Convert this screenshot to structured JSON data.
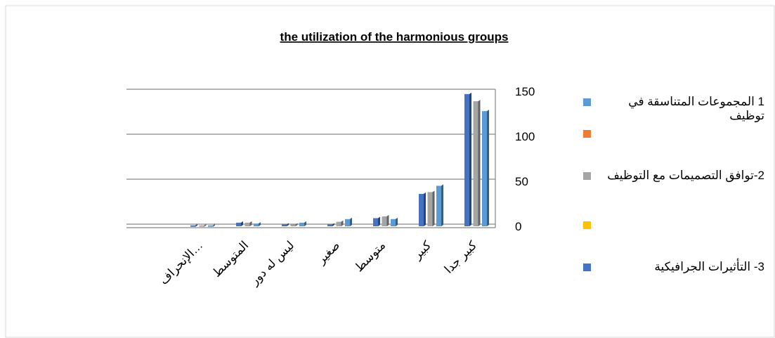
{
  "chart_data": {
    "type": "bar",
    "title": "the utilization of  the harmonious groups",
    "categories": [
      "الإنحراف…",
      "المتوسط",
      "ليس له دور",
      "صغير",
      "متوسط",
      "كبير",
      "كبير جدا"
    ],
    "series": [
      {
        "name": "1 المجموعات المتناسقة في توظيف",
        "color": "#5b9bd5",
        "values": [
          1,
          3,
          4,
          8,
          8,
          45,
          128
        ]
      },
      {
        "color": "#ed7d31",
        "values": [
          null,
          null,
          null,
          null,
          null,
          null,
          null
        ]
      },
      {
        "name": "2-توافق التصميمات مع التوظيف",
        "color": "#a5a5a5",
        "values": [
          1,
          4,
          2,
          5,
          11,
          38,
          139
        ]
      },
      {
        "color": "#ffc000",
        "values": [
          null,
          null,
          null,
          null,
          null,
          null,
          null
        ]
      },
      {
        "name": "3-  التأثيرات الجرافيكية",
        "color": "#4472c4",
        "values": [
          1,
          4,
          2,
          2,
          9,
          36,
          147
        ]
      }
    ],
    "ylim": [
      0,
      150
    ],
    "yticks": [
      0,
      50,
      100,
      150
    ],
    "grid": true
  }
}
